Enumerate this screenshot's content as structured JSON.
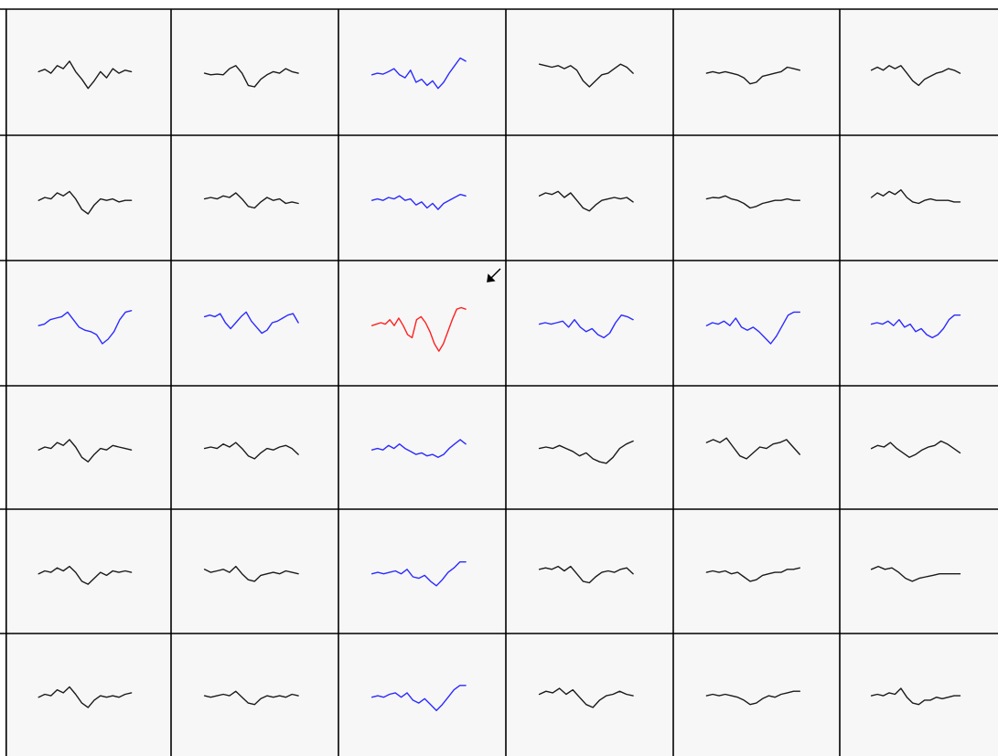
{
  "chart_data": {
    "type": "line",
    "layout": "grid",
    "rows": 6,
    "cols": 6,
    "grid_lines": true,
    "axes_visible": false,
    "colors": {
      "normal": "#1a1a1a",
      "highlight": "#2b2bff",
      "selected": "#ff2020",
      "background": "#f7f7f7",
      "grid": "#000000"
    },
    "cursor": {
      "name": "cursor-arrow-icon",
      "shape": "arrow-down-left"
    },
    "selected_cell": {
      "row": 2,
      "col": 2
    },
    "cells": [
      [
        {
          "color": "normal",
          "values": [
            0.1,
            0.18,
            0.05,
            0.3,
            0.2,
            0.45,
            0.1,
            -0.15,
            -0.45,
            -0.2,
            0.1,
            -0.1,
            0.2,
            0.05,
            0.15,
            0.1
          ]
        },
        {
          "color": "normal",
          "values": [
            0.05,
            0.0,
            0.02,
            0.0,
            0.2,
            0.3,
            0.05,
            -0.35,
            -0.4,
            -0.15,
            0.0,
            0.1,
            0.05,
            0.2,
            0.1,
            0.05
          ]
        },
        {
          "color": "highlight",
          "values": [
            0.0,
            0.05,
            0.02,
            0.1,
            0.2,
            0.0,
            -0.1,
            0.15,
            -0.25,
            -0.15,
            -0.35,
            -0.2,
            -0.45,
            -0.25,
            0.05,
            0.3,
            0.55,
            0.45
          ]
        },
        {
          "color": "normal",
          "values": [
            0.35,
            0.3,
            0.25,
            0.3,
            0.2,
            0.3,
            0.15,
            -0.2,
            -0.4,
            -0.2,
            0.0,
            0.05,
            0.2,
            0.35,
            0.25,
            0.05
          ]
        },
        {
          "color": "normal",
          "values": [
            0.05,
            0.1,
            0.05,
            0.1,
            0.05,
            0.0,
            -0.1,
            -0.3,
            -0.25,
            -0.05,
            0.0,
            0.05,
            0.1,
            0.25,
            0.2,
            0.15
          ]
        },
        {
          "color": "normal",
          "values": [
            0.15,
            0.25,
            0.15,
            0.3,
            0.2,
            0.3,
            0.05,
            -0.2,
            -0.35,
            -0.15,
            -0.05,
            0.05,
            0.1,
            0.2,
            0.15,
            0.05
          ]
        }
      ],
      [
        {
          "color": "normal",
          "values": [
            0.0,
            0.1,
            0.05,
            0.25,
            0.15,
            0.3,
            0.05,
            -0.3,
            -0.45,
            -0.15,
            0.05,
            0.0,
            0.05,
            -0.05,
            0.0,
            0.0
          ]
        },
        {
          "color": "normal",
          "values": [
            0.05,
            0.1,
            0.05,
            0.15,
            0.1,
            0.25,
            0.05,
            -0.2,
            -0.25,
            -0.05,
            0.1,
            0.0,
            0.05,
            -0.1,
            -0.05,
            -0.1
          ]
        },
        {
          "color": "highlight",
          "values": [
            0.0,
            0.05,
            0.0,
            0.1,
            0.05,
            0.15,
            0.0,
            0.05,
            -0.15,
            -0.05,
            -0.25,
            -0.1,
            -0.3,
            -0.1,
            0.0,
            0.1,
            0.2,
            0.15
          ]
        },
        {
          "color": "normal",
          "values": [
            0.15,
            0.25,
            0.2,
            0.3,
            0.1,
            0.25,
            0.0,
            -0.25,
            -0.35,
            -0.15,
            0.0,
            0.05,
            0.1,
            0.05,
            0.1,
            -0.05
          ]
        },
        {
          "color": "normal",
          "values": [
            0.05,
            0.1,
            0.08,
            0.15,
            0.05,
            0.0,
            -0.1,
            -0.25,
            -0.2,
            -0.1,
            -0.05,
            0.0,
            0.0,
            0.05,
            0.0,
            0.0
          ]
        },
        {
          "color": "normal",
          "values": [
            0.1,
            0.25,
            0.15,
            0.3,
            0.2,
            0.35,
            0.1,
            -0.05,
            -0.1,
            0.0,
            0.05,
            0.0,
            0.0,
            0.0,
            -0.05,
            -0.05
          ]
        }
      ],
      [
        {
          "color": "highlight",
          "values": [
            0.0,
            0.05,
            0.2,
            0.25,
            0.3,
            0.45,
            0.2,
            -0.05,
            -0.15,
            -0.2,
            -0.3,
            -0.6,
            -0.45,
            -0.2,
            0.2,
            0.45,
            0.5
          ]
        },
        {
          "color": "highlight",
          "values": [
            0.3,
            0.35,
            0.3,
            0.4,
            0.1,
            -0.1,
            0.1,
            0.3,
            0.45,
            0.15,
            -0.05,
            -0.25,
            -0.15,
            0.1,
            0.15,
            0.25,
            0.35,
            0.4,
            0.1
          ]
        },
        {
          "color": "selected",
          "values": [
            0.0,
            0.05,
            0.1,
            0.05,
            0.2,
            0.0,
            0.25,
            0.0,
            -0.3,
            -0.4,
            0.2,
            0.3,
            0.1,
            -0.2,
            -0.6,
            -0.85,
            -0.6,
            -0.2,
            0.2,
            0.55,
            0.6,
            0.55
          ]
        },
        {
          "color": "highlight",
          "values": [
            0.05,
            0.1,
            0.05,
            0.1,
            0.15,
            -0.05,
            0.2,
            -0.05,
            -0.2,
            -0.1,
            -0.3,
            -0.4,
            -0.25,
            0.1,
            0.35,
            0.3,
            0.2
          ]
        },
        {
          "color": "highlight",
          "values": [
            0.0,
            0.1,
            0.05,
            0.15,
            0.0,
            0.25,
            -0.05,
            -0.15,
            -0.05,
            -0.2,
            -0.4,
            -0.6,
            -0.35,
            0.0,
            0.35,
            0.45,
            0.45
          ]
        },
        {
          "color": "highlight",
          "values": [
            0.05,
            0.1,
            0.05,
            0.15,
            0.0,
            0.2,
            -0.05,
            0.05,
            -0.2,
            -0.1,
            -0.3,
            -0.4,
            -0.3,
            -0.1,
            0.2,
            0.35,
            0.35
          ]
        }
      ],
      [
        {
          "color": "normal",
          "values": [
            0.0,
            0.1,
            0.05,
            0.25,
            0.15,
            0.35,
            0.1,
            -0.25,
            -0.4,
            -0.15,
            0.05,
            0.0,
            0.15,
            0.1,
            0.05,
            0.0
          ]
        },
        {
          "color": "normal",
          "values": [
            0.05,
            0.1,
            0.05,
            0.2,
            0.1,
            0.25,
            0.05,
            -0.2,
            -0.3,
            -0.1,
            0.05,
            0.0,
            0.1,
            0.15,
            0.05,
            -0.15
          ]
        },
        {
          "color": "highlight",
          "values": [
            0.0,
            0.05,
            0.0,
            0.15,
            0.05,
            0.2,
            0.05,
            -0.05,
            -0.15,
            -0.1,
            -0.2,
            -0.15,
            -0.25,
            -0.15,
            0.05,
            0.2,
            0.35,
            0.2
          ]
        },
        {
          "color": "normal",
          "values": [
            0.05,
            0.1,
            0.05,
            0.15,
            0.05,
            -0.05,
            -0.2,
            -0.1,
            -0.3,
            -0.4,
            -0.45,
            -0.25,
            0.05,
            0.2,
            0.3
          ]
        },
        {
          "color": "normal",
          "values": [
            0.25,
            0.35,
            0.25,
            0.4,
            0.1,
            -0.2,
            -0.3,
            -0.1,
            0.1,
            0.05,
            0.2,
            0.25,
            0.35,
            0.1,
            -0.15
          ]
        },
        {
          "color": "normal",
          "values": [
            0.05,
            0.15,
            0.1,
            0.25,
            0.05,
            -0.1,
            -0.25,
            -0.15,
            0.0,
            0.1,
            0.15,
            0.3,
            0.2,
            0.05,
            -0.1
          ]
        }
      ],
      [
        {
          "color": "normal",
          "values": [
            0.0,
            0.1,
            0.05,
            0.2,
            0.1,
            0.25,
            0.05,
            -0.25,
            -0.35,
            -0.15,
            0.05,
            -0.05,
            0.1,
            0.05,
            0.1,
            0.05
          ]
        },
        {
          "color": "normal",
          "values": [
            0.15,
            0.05,
            0.1,
            0.15,
            0.05,
            0.25,
            0.0,
            -0.2,
            -0.25,
            -0.05,
            0.0,
            0.05,
            0.0,
            0.1,
            0.05,
            0.0
          ]
        },
        {
          "color": "highlight",
          "values": [
            0.0,
            0.05,
            0.0,
            0.05,
            0.1,
            0.0,
            0.15,
            -0.1,
            -0.15,
            -0.05,
            -0.25,
            -0.4,
            -0.2,
            0.05,
            0.2,
            0.4,
            0.4
          ]
        },
        {
          "color": "normal",
          "values": [
            0.15,
            0.2,
            0.15,
            0.25,
            0.1,
            0.25,
            0.0,
            -0.25,
            -0.3,
            -0.1,
            0.05,
            0.1,
            0.05,
            0.15,
            0.2,
            0.0
          ]
        },
        {
          "color": "normal",
          "values": [
            0.05,
            0.1,
            0.05,
            0.1,
            0.0,
            0.05,
            -0.1,
            -0.25,
            -0.2,
            -0.05,
            0.0,
            0.05,
            0.05,
            0.15,
            0.15,
            0.2
          ]
        },
        {
          "color": "normal",
          "values": [
            0.15,
            0.25,
            0.15,
            0.2,
            0.05,
            -0.15,
            -0.25,
            -0.15,
            -0.1,
            -0.05,
            0.0,
            0.0,
            0.0,
            0.0
          ]
        }
      ],
      [
        {
          "color": "normal",
          "values": [
            0.0,
            0.1,
            0.05,
            0.25,
            0.15,
            0.35,
            0.1,
            -0.2,
            -0.35,
            -0.1,
            0.05,
            0.0,
            0.05,
            0.0,
            0.1,
            0.15
          ]
        },
        {
          "color": "normal",
          "values": [
            0.05,
            0.0,
            0.05,
            0.1,
            0.05,
            0.2,
            0.0,
            -0.2,
            -0.25,
            -0.05,
            0.05,
            0.0,
            0.05,
            0.0,
            0.1,
            0.05
          ]
        },
        {
          "color": "highlight",
          "values": [
            0.0,
            0.05,
            0.0,
            0.1,
            0.15,
            0.0,
            0.15,
            -0.1,
            -0.2,
            -0.05,
            -0.25,
            -0.45,
            -0.25,
            0.0,
            0.25,
            0.4,
            0.4
          ]
        },
        {
          "color": "normal",
          "values": [
            0.1,
            0.2,
            0.15,
            0.3,
            0.1,
            0.25,
            0.0,
            -0.25,
            -0.35,
            -0.1,
            0.05,
            0.1,
            0.2,
            0.1,
            0.05
          ]
        },
        {
          "color": "normal",
          "values": [
            0.05,
            0.1,
            0.05,
            0.1,
            0.05,
            0.0,
            -0.1,
            -0.25,
            -0.2,
            -0.05,
            0.05,
            0.0,
            0.1,
            0.15,
            0.2,
            0.2
          ]
        },
        {
          "color": "normal",
          "values": [
            0.05,
            0.1,
            0.05,
            0.15,
            0.1,
            0.3,
            0.0,
            -0.2,
            -0.25,
            -0.1,
            -0.1,
            0.0,
            -0.05,
            0.0,
            0.05,
            0.05
          ]
        }
      ]
    ]
  }
}
